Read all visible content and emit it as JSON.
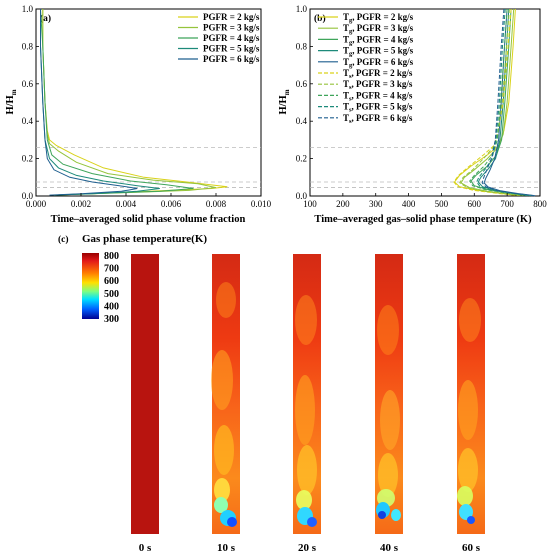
{
  "panel_labels": {
    "a": "(a)",
    "b": "(b)",
    "c": "(c)"
  },
  "colors": {
    "PGFR = 2 kg/s": "#d9d21a",
    "PGFR = 3 kg/s": "#95c43c",
    "PGFR = 4 kg/s": "#3fa55a",
    "PGFR = 5 kg/s": "#1d8a7a",
    "PGFR = 6 kg/s": "#1f5f8f"
  },
  "chart_data": [
    {
      "type": "line",
      "panel": "(a)",
      "xlabel": "Time–averaged solid phase volume fraction",
      "ylabel": "H/H",
      "ylabel_sub": "m",
      "xlim": [
        0,
        0.01
      ],
      "ylim": [
        0,
        1.0
      ],
      "xticks": [
        "0.000",
        "0.002",
        "0.004",
        "0.006",
        "0.008",
        "0.010"
      ],
      "yticks": [
        "0.0",
        "0.2",
        "0.4",
        "0.6",
        "0.8",
        "1.0"
      ],
      "legend_position": "top-right",
      "reference_lines_y": [
        0.045,
        0.075,
        0.26
      ],
      "series": [
        {
          "name": "PGFR = 2 kg/s",
          "points": [
            [
              0.0003,
              1.0
            ],
            [
              0.0003,
              0.8
            ],
            [
              0.0004,
              0.5
            ],
            [
              0.0005,
              0.35
            ],
            [
              0.0006,
              0.3
            ],
            [
              0.0009,
              0.27
            ],
            [
              0.0017,
              0.22
            ],
            [
              0.003,
              0.15
            ],
            [
              0.0048,
              0.1
            ],
            [
              0.0067,
              0.075
            ],
            [
              0.0085,
              0.05
            ],
            [
              0.0078,
              0.04
            ],
            [
              0.005,
              0.025
            ],
            [
              0.0025,
              0.012
            ],
            [
              0.0008,
              0.005
            ]
          ]
        },
        {
          "name": "PGFR = 3 kg/s",
          "points": [
            [
              0.0003,
              1.0
            ],
            [
              0.0003,
              0.8
            ],
            [
              0.0004,
              0.5
            ],
            [
              0.0005,
              0.33
            ],
            [
              0.0006,
              0.28
            ],
            [
              0.001,
              0.24
            ],
            [
              0.0018,
              0.18
            ],
            [
              0.0032,
              0.12
            ],
            [
              0.0052,
              0.085
            ],
            [
              0.0072,
              0.065
            ],
            [
              0.008,
              0.045
            ],
            [
              0.0068,
              0.03
            ],
            [
              0.004,
              0.018
            ],
            [
              0.0015,
              0.008
            ]
          ]
        },
        {
          "name": "PGFR = 4 kg/s",
          "points": [
            [
              0.0002,
              1.0
            ],
            [
              0.0003,
              0.8
            ],
            [
              0.0004,
              0.5
            ],
            [
              0.0005,
              0.3
            ],
            [
              0.0007,
              0.22
            ],
            [
              0.0012,
              0.17
            ],
            [
              0.0025,
              0.12
            ],
            [
              0.0042,
              0.08
            ],
            [
              0.0058,
              0.06
            ],
            [
              0.007,
              0.04
            ],
            [
              0.0055,
              0.025
            ],
            [
              0.003,
              0.015
            ],
            [
              0.001,
              0.006
            ]
          ]
        },
        {
          "name": "PGFR = 5 kg/s",
          "points": [
            [
              0.0002,
              1.0
            ],
            [
              0.0002,
              0.8
            ],
            [
              0.0003,
              0.5
            ],
            [
              0.0004,
              0.3
            ],
            [
              0.0006,
              0.2
            ],
            [
              0.001,
              0.15
            ],
            [
              0.0018,
              0.11
            ],
            [
              0.003,
              0.08
            ],
            [
              0.0045,
              0.055
            ],
            [
              0.0055,
              0.04
            ],
            [
              0.0045,
              0.025
            ],
            [
              0.0025,
              0.012
            ],
            [
              0.0008,
              0.005
            ]
          ]
        },
        {
          "name": "PGFR = 6 kg/s",
          "points": [
            [
              0.0002,
              1.0
            ],
            [
              0.0002,
              0.8
            ],
            [
              0.0003,
              0.5
            ],
            [
              0.0004,
              0.3
            ],
            [
              0.0005,
              0.2
            ],
            [
              0.0008,
              0.14
            ],
            [
              0.0015,
              0.1
            ],
            [
              0.0025,
              0.075
            ],
            [
              0.0037,
              0.055
            ],
            [
              0.0045,
              0.04
            ],
            [
              0.0038,
              0.025
            ],
            [
              0.002,
              0.012
            ],
            [
              0.0006,
              0.005
            ]
          ]
        }
      ]
    },
    {
      "type": "line",
      "panel": "(b)",
      "xlabel": "Time–averaged gas–solid phase temperature (K)",
      "ylabel": "H/H",
      "ylabel_sub": "m",
      "xlim": [
        100,
        800
      ],
      "ylim": [
        0,
        1.0
      ],
      "xticks": [
        "100",
        "200",
        "300",
        "400",
        "500",
        "600",
        "700",
        "800"
      ],
      "yticks": [
        "0.0",
        "0.2",
        "0.4",
        "0.6",
        "0.8",
        "1.0"
      ],
      "legend_position": "top-left",
      "reference_lines_y": [
        0.045,
        0.075,
        0.26
      ],
      "series": [
        {
          "name": "T_g, PGFR = 2 kg/s",
          "sym": "g",
          "pgfr": "PGFR = 2 kg/s",
          "dash": false,
          "points": [
            [
              725,
              1.0
            ],
            [
              718,
              0.8
            ],
            [
              705,
              0.5
            ],
            [
              690,
              0.35
            ],
            [
              675,
              0.27
            ],
            [
              640,
              0.22
            ],
            [
              590,
              0.16
            ],
            [
              555,
              0.11
            ],
            [
              540,
              0.075
            ],
            [
              555,
              0.05
            ],
            [
              610,
              0.03
            ],
            [
              690,
              0.012
            ],
            [
              740,
              0.003
            ]
          ]
        },
        {
          "name": "T_g, PGFR = 3 kg/s",
          "sym": "g",
          "pgfr": "PGFR = 3 kg/s",
          "dash": false,
          "points": [
            [
              720,
              1.0
            ],
            [
              712,
              0.8
            ],
            [
              700,
              0.5
            ],
            [
              688,
              0.33
            ],
            [
              672,
              0.26
            ],
            [
              640,
              0.2
            ],
            [
              600,
              0.14
            ],
            [
              570,
              0.1
            ],
            [
              560,
              0.07
            ],
            [
              585,
              0.045
            ],
            [
              640,
              0.025
            ],
            [
              710,
              0.01
            ],
            [
              750,
              0.003
            ]
          ]
        },
        {
          "name": "T_g, PGFR = 4 kg/s",
          "sym": "g",
          "pgfr": "PGFR = 4 kg/s",
          "dash": false,
          "points": [
            [
              712,
              1.0
            ],
            [
              705,
              0.8
            ],
            [
              693,
              0.5
            ],
            [
              683,
              0.3
            ],
            [
              668,
              0.22
            ],
            [
              640,
              0.16
            ],
            [
              605,
              0.11
            ],
            [
              590,
              0.08
            ],
            [
              600,
              0.055
            ],
            [
              640,
              0.035
            ],
            [
              700,
              0.018
            ],
            [
              750,
              0.006
            ],
            [
              770,
              0.002
            ]
          ]
        },
        {
          "name": "T_g, PGFR = 5 kg/s",
          "sym": "g",
          "pgfr": "PGFR = 5 kg/s",
          "dash": false,
          "points": [
            [
              705,
              1.0
            ],
            [
              698,
              0.8
            ],
            [
              688,
              0.5
            ],
            [
              678,
              0.3
            ],
            [
              665,
              0.2
            ],
            [
              645,
              0.15
            ],
            [
              620,
              0.1
            ],
            [
              612,
              0.075
            ],
            [
              625,
              0.05
            ],
            [
              665,
              0.03
            ],
            [
              720,
              0.015
            ],
            [
              765,
              0.005
            ],
            [
              780,
              0.002
            ]
          ]
        },
        {
          "name": "T_g, PGFR = 6 kg/s",
          "sym": "g",
          "pgfr": "PGFR = 6 kg/s",
          "dash": false,
          "points": [
            [
              700,
              1.0
            ],
            [
              692,
              0.8
            ],
            [
              682,
              0.5
            ],
            [
              674,
              0.3
            ],
            [
              662,
              0.2
            ],
            [
              648,
              0.14
            ],
            [
              635,
              0.095
            ],
            [
              630,
              0.07
            ],
            [
              642,
              0.048
            ],
            [
              680,
              0.028
            ],
            [
              735,
              0.013
            ],
            [
              775,
              0.004
            ],
            [
              785,
              0.001
            ]
          ]
        },
        {
          "name": "T_s, PGFR = 2 kg/s",
          "sym": "s",
          "pgfr": "PGFR = 2 kg/s",
          "dash": true,
          "points": [
            [
              712,
              1.0
            ],
            [
              703,
              0.8
            ],
            [
              688,
              0.5
            ],
            [
              673,
              0.35
            ],
            [
              660,
              0.27
            ],
            [
              628,
              0.22
            ],
            [
              585,
              0.16
            ],
            [
              552,
              0.11
            ],
            [
              538,
              0.075
            ],
            [
              550,
              0.05
            ],
            [
              600,
              0.03
            ],
            [
              680,
              0.012
            ],
            [
              732,
              0.003
            ]
          ]
        },
        {
          "name": "T_s, PGFR = 3 kg/s",
          "sym": "s",
          "pgfr": "PGFR = 3 kg/s",
          "dash": true,
          "points": [
            [
              707,
              1.0
            ],
            [
              698,
              0.8
            ],
            [
              685,
              0.5
            ],
            [
              672,
              0.33
            ],
            [
              658,
              0.26
            ],
            [
              628,
              0.2
            ],
            [
              595,
              0.14
            ],
            [
              566,
              0.1
            ],
            [
              556,
              0.07
            ],
            [
              578,
              0.045
            ],
            [
              632,
              0.025
            ],
            [
              702,
              0.01
            ],
            [
              742,
              0.003
            ]
          ]
        },
        {
          "name": "T_s, PGFR = 4 kg/s",
          "sym": "s",
          "pgfr": "PGFR = 4 kg/s",
          "dash": true,
          "points": [
            [
              700,
              1.0
            ],
            [
              692,
              0.8
            ],
            [
              680,
              0.5
            ],
            [
              670,
              0.3
            ],
            [
              656,
              0.22
            ],
            [
              630,
              0.16
            ],
            [
              600,
              0.11
            ],
            [
              586,
              0.08
            ],
            [
              595,
              0.055
            ],
            [
              632,
              0.035
            ],
            [
              692,
              0.018
            ],
            [
              742,
              0.006
            ],
            [
              762,
              0.002
            ]
          ]
        },
        {
          "name": "T_s, PGFR = 5 kg/s",
          "sym": "s",
          "pgfr": "PGFR = 5 kg/s",
          "dash": true,
          "points": [
            [
              694,
              1.0
            ],
            [
              686,
              0.8
            ],
            [
              676,
              0.5
            ],
            [
              666,
              0.3
            ],
            [
              654,
              0.2
            ],
            [
              636,
              0.15
            ],
            [
              614,
              0.1
            ],
            [
              607,
              0.075
            ],
            [
              618,
              0.05
            ],
            [
              657,
              0.03
            ],
            [
              712,
              0.015
            ],
            [
              757,
              0.005
            ],
            [
              772,
              0.002
            ]
          ]
        },
        {
          "name": "T_s, PGFR = 6 kg/s",
          "sym": "s",
          "pgfr": "PGFR = 6 kg/s",
          "dash": true,
          "points": [
            [
              690,
              1.0
            ],
            [
              682,
              0.8
            ],
            [
              672,
              0.5
            ],
            [
              664,
              0.3
            ],
            [
              652,
              0.2
            ],
            [
              638,
              0.14
            ],
            [
              628,
              0.095
            ],
            [
              624,
              0.07
            ],
            [
              636,
              0.048
            ],
            [
              672,
              0.028
            ],
            [
              727,
              0.013
            ],
            [
              767,
              0.004
            ],
            [
              777,
              0.001
            ]
          ]
        }
      ]
    },
    {
      "type": "heatmap",
      "panel": "(c)",
      "title": "Gas phase temperature(K)",
      "colorbar_ticks": [
        "800",
        "700",
        "600",
        "500",
        "400",
        "300"
      ],
      "colorbar_range": [
        300,
        800
      ],
      "snapshots": [
        "0 s",
        "10 s",
        "20 s",
        "40 s",
        "60 s"
      ]
    }
  ]
}
